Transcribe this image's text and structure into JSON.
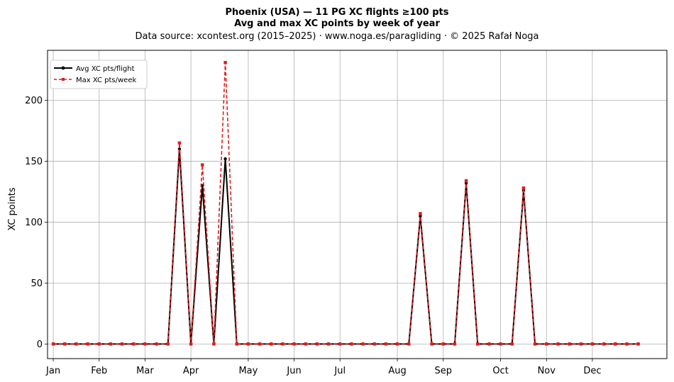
{
  "chart_data": {
    "type": "line",
    "title_line1": "Phoenix (USA)  —  11 PG XC flights ≥100 pts",
    "title_line2": "Avg and max XC points by week of year",
    "subtitle": "Data source: xcontest.org (2015–2025)  ·  www.noga.es/paragliding  ·  © 2025 Rafał Noga",
    "xlabel": "",
    "ylabel": "XC points",
    "xlim": [
      -0.5,
      53.5
    ],
    "ylim": [
      -12,
      241
    ],
    "yticks": [
      0,
      50,
      100,
      150,
      200
    ],
    "xticks": [
      {
        "label": "Jan",
        "week": 0
      },
      {
        "label": "Feb",
        "week": 4
      },
      {
        "label": "Mar",
        "week": 8
      },
      {
        "label": "Apr",
        "week": 12
      },
      {
        "label": "May",
        "week": 17
      },
      {
        "label": "Jun",
        "week": 21
      },
      {
        "label": "Jul",
        "week": 25
      },
      {
        "label": "Aug",
        "week": 30
      },
      {
        "label": "Sep",
        "week": 34
      },
      {
        "label": "Oct",
        "week": 39
      },
      {
        "label": "Nov",
        "week": 43
      },
      {
        "label": "Dec",
        "week": 47
      }
    ],
    "grid": true,
    "legend_position": "top-left",
    "x": [
      0,
      1,
      2,
      3,
      4,
      5,
      6,
      7,
      8,
      9,
      10,
      11,
      12,
      13,
      14,
      15,
      16,
      17,
      18,
      19,
      20,
      21,
      22,
      23,
      24,
      25,
      26,
      27,
      28,
      29,
      30,
      31,
      32,
      33,
      34,
      35,
      36,
      37,
      38,
      39,
      40,
      41,
      42,
      43,
      44,
      45,
      46,
      47,
      48,
      49,
      50,
      51
    ],
    "series": [
      {
        "name": "Avg XC pts/flight",
        "color": "#000000",
        "style": "solid-dot",
        "values": [
          0,
          0,
          0,
          0,
          0,
          0,
          0,
          0,
          0,
          0,
          0,
          160,
          0,
          130,
          0,
          152,
          0,
          0,
          0,
          0,
          0,
          0,
          0,
          0,
          0,
          0,
          0,
          0,
          0,
          0,
          0,
          0,
          105,
          0,
          0,
          0,
          132,
          0,
          0,
          0,
          0,
          126,
          0,
          0,
          0,
          0,
          0,
          0,
          0,
          0,
          0,
          0
        ]
      },
      {
        "name": "Max XC pts/week",
        "color": "#e41a1c",
        "style": "dashed-square",
        "values": [
          0,
          0,
          0,
          0,
          0,
          0,
          0,
          0,
          0,
          0,
          0,
          165,
          0,
          147,
          0,
          231,
          0,
          0,
          0,
          0,
          0,
          0,
          0,
          0,
          0,
          0,
          0,
          0,
          0,
          0,
          0,
          0,
          107,
          0,
          0,
          0,
          134,
          0,
          0,
          0,
          0,
          128,
          0,
          0,
          0,
          0,
          0,
          0,
          0,
          0,
          0,
          0
        ]
      }
    ]
  }
}
